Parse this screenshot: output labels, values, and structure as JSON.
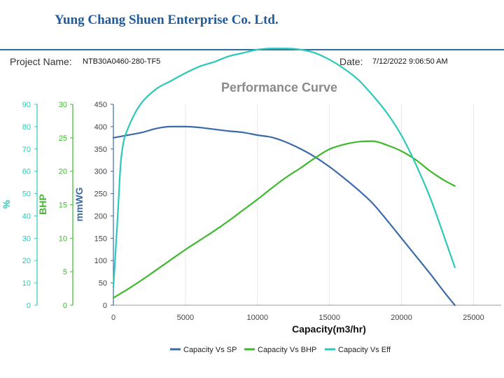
{
  "header": {
    "company": "Yung Chang Shuen Enterprise Co. Ltd.",
    "project_label": "Project Name:",
    "project_value": "NTB30A0460-280-TF5",
    "date_label": "Date:",
    "date_value": "7/12/2022 9:06:50 AM"
  },
  "chart_data": {
    "type": "line",
    "title": "Performance Curve",
    "xlabel": "Capacity(m3/hr)",
    "xlim": [
      0,
      25000
    ],
    "xticks": [
      "0",
      "5000",
      "10000",
      "15000",
      "20000",
      "25000"
    ],
    "axes": {
      "eff": {
        "label": "%",
        "ylim": [
          0,
          90
        ],
        "ticks": [
          "0",
          "10",
          "20",
          "30",
          "40",
          "50",
          "60",
          "70",
          "80",
          "90"
        ],
        "color": "#2cc8b8"
      },
      "bhp": {
        "label": "BHP",
        "ylim": [
          0,
          30
        ],
        "ticks": [
          "0",
          "5",
          "10",
          "15",
          "20",
          "25",
          "30"
        ],
        "color": "#3cba2c"
      },
      "sp": {
        "label": "mmWG",
        "ylim": [
          0,
          450
        ],
        "ticks": [
          "0",
          "50",
          "100",
          "150",
          "200",
          "250",
          "300",
          "350",
          "400",
          "450"
        ],
        "color": "#3b6aa8"
      }
    },
    "series": [
      {
        "name": "Capacity Vs SP",
        "axis": "sp",
        "color": "#3b6aa8",
        "x": [
          0,
          1000,
          2000,
          3000,
          4000,
          5000,
          6000,
          7000,
          8000,
          9000,
          10000,
          11000,
          12000,
          13000,
          14000,
          15000,
          16000,
          17000,
          18000,
          19000,
          20000,
          21000,
          22000,
          23000,
          23700
        ],
        "y": [
          375,
          381,
          387,
          396,
          400,
          400,
          398,
          394,
          390,
          387,
          381,
          376,
          365,
          350,
          332,
          310,
          285,
          258,
          228,
          190,
          150,
          110,
          70,
          28,
          0
        ]
      },
      {
        "name": "Capacity Vs BHP",
        "axis": "bhp",
        "color": "#3cba2c",
        "x": [
          0,
          1000,
          2000,
          3000,
          4000,
          5000,
          6000,
          7000,
          8000,
          9000,
          10000,
          11000,
          12000,
          13000,
          14000,
          15000,
          16000,
          17000,
          18000,
          19000,
          20000,
          21000,
          22000,
          23000,
          23700
        ],
        "y": [
          1.1,
          2.4,
          3.8,
          5.3,
          6.8,
          8.3,
          9.7,
          11.1,
          12.6,
          14.2,
          15.8,
          17.5,
          19.1,
          20.5,
          22.0,
          23.3,
          24.0,
          24.4,
          24.5,
          23.9,
          23.0,
          21.7,
          20.0,
          18.6,
          17.8
        ]
      },
      {
        "name": "Capacity Vs Eff",
        "axis": "eff",
        "color": "#2cc8b8",
        "x": [
          0,
          300,
          500,
          700,
          1000,
          1500,
          2000,
          3000,
          4000,
          5000,
          6000,
          7000,
          8000,
          9000,
          10000,
          11000,
          12000,
          13000,
          14000,
          15000,
          16000,
          17000,
          18000,
          19000,
          20000,
          21000,
          22000,
          23000,
          23700
        ],
        "y": [
          8,
          40,
          63,
          73,
          79,
          86,
          91,
          97,
          100.5,
          104,
          107,
          109,
          111.5,
          113,
          114.5,
          115,
          115,
          114.5,
          113,
          110,
          106,
          101,
          94,
          86,
          76,
          63,
          48,
          30,
          17
        ]
      }
    ],
    "legend_position": "bottom-center",
    "grid": {
      "vertical": true,
      "horizontal": false
    }
  }
}
